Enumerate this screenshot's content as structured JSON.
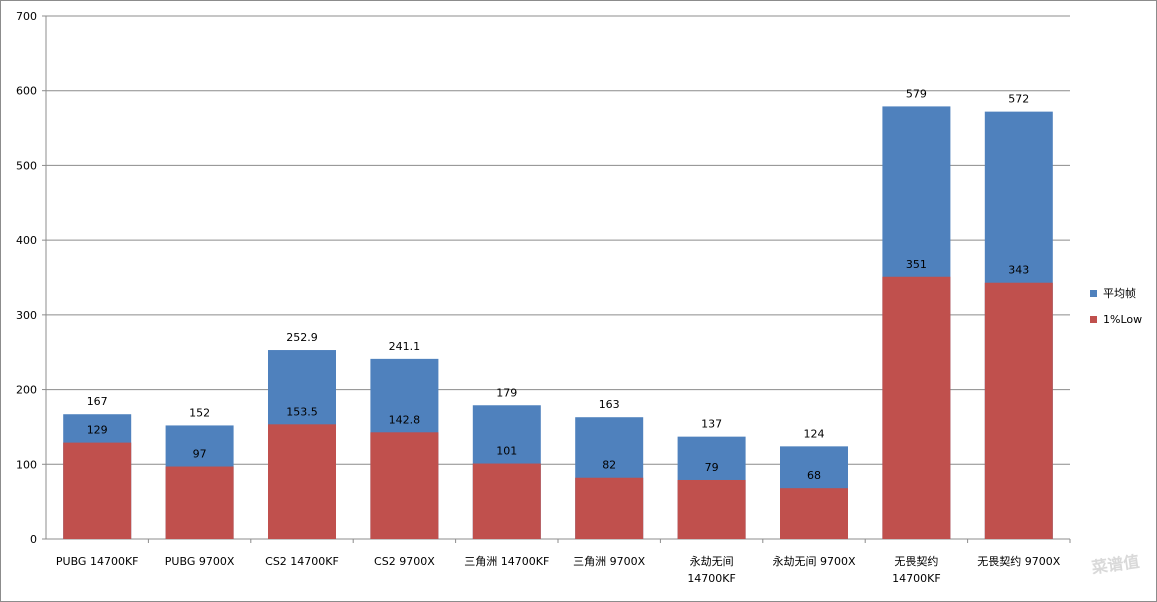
{
  "chart_data": {
    "type": "bar",
    "stacking": "overlay",
    "categories": [
      [
        "PUBG 14700KF"
      ],
      [
        "PUBG 9700X"
      ],
      [
        "CS2 14700KF"
      ],
      [
        "CS2 9700X"
      ],
      [
        "三角洲 14700KF"
      ],
      [
        "三角洲 9700X"
      ],
      [
        "永劫无间",
        "14700KF"
      ],
      [
        "永劫无间 9700X"
      ],
      [
        "无畏契约",
        "14700KF"
      ],
      [
        "无畏契约 9700X"
      ]
    ],
    "series": [
      {
        "name": "平均帧",
        "color": "#4f81bd",
        "values": [
          167,
          152,
          252.9,
          241.1,
          179,
          163,
          137,
          124,
          579,
          572
        ],
        "labels": [
          "167",
          "152",
          "252.9",
          "241.1",
          "179",
          "163",
          "137",
          "124",
          "579",
          "572"
        ]
      },
      {
        "name": "1%Low",
        "color": "#c0504d",
        "values": [
          129,
          97,
          153.5,
          142.8,
          101,
          82,
          79,
          68,
          351,
          343
        ],
        "labels": [
          "129",
          "97",
          "153.5",
          "142.8",
          "101",
          "82",
          "79",
          "68",
          "351",
          "343"
        ]
      }
    ],
    "ylim": [
      0,
      700
    ],
    "yticks": [
      "0",
      "100",
      "200",
      "300",
      "400",
      "500",
      "600",
      "700"
    ],
    "grid": true,
    "legend": "right"
  },
  "watermark": "菜谱值"
}
